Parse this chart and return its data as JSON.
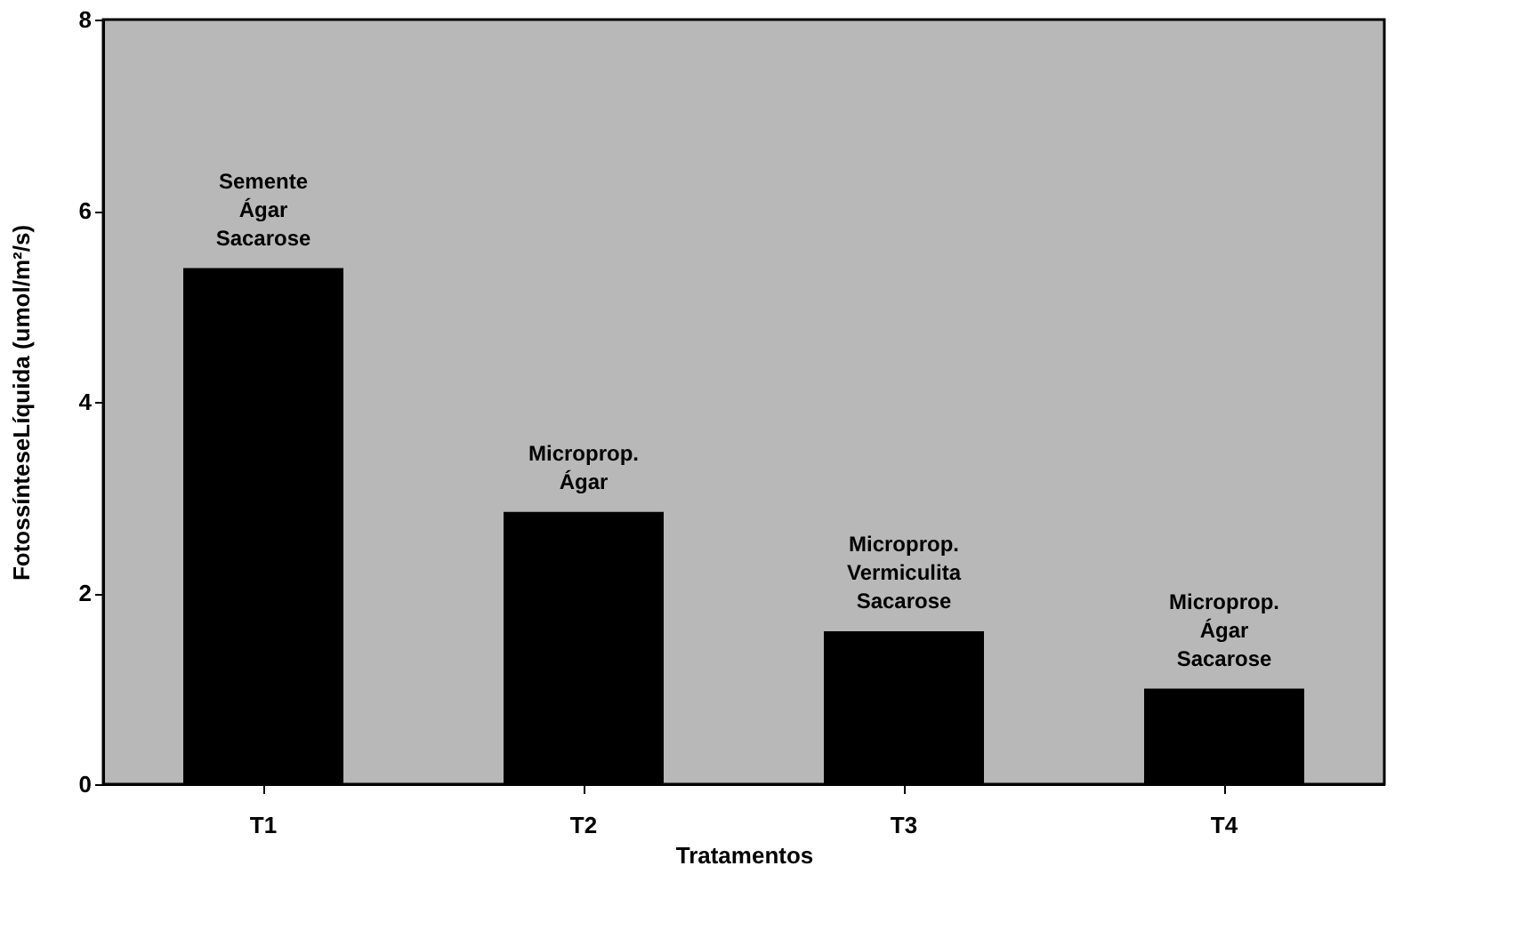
{
  "chart_data": {
    "type": "bar",
    "xlabel": "Tratamentos",
    "ylabel": "FotossínteseLíquida (umol/m²/s)",
    "categories": [
      "T1",
      "T2",
      "T3",
      "T4"
    ],
    "values": [
      5.4,
      2.85,
      1.6,
      1.0
    ],
    "color": "#000000",
    "ylim": [
      0,
      8
    ],
    "yticks": [
      0,
      2,
      4,
      6,
      8
    ],
    "grid": false,
    "annotations": [
      {
        "text": "Semente\nÁgar\nSacarose",
        "x": "T1",
        "y": 5.4
      },
      {
        "text": "Microprop.\nÁgar",
        "x": "T2",
        "y": 2.85
      },
      {
        "text": "Microprop.\nVermiculita\nSacarose",
        "x": "T3",
        "y": 1.6
      },
      {
        "text": "Microprop.\nÁgar\nSacarose",
        "x": "T4",
        "y": 1.0
      }
    ]
  }
}
